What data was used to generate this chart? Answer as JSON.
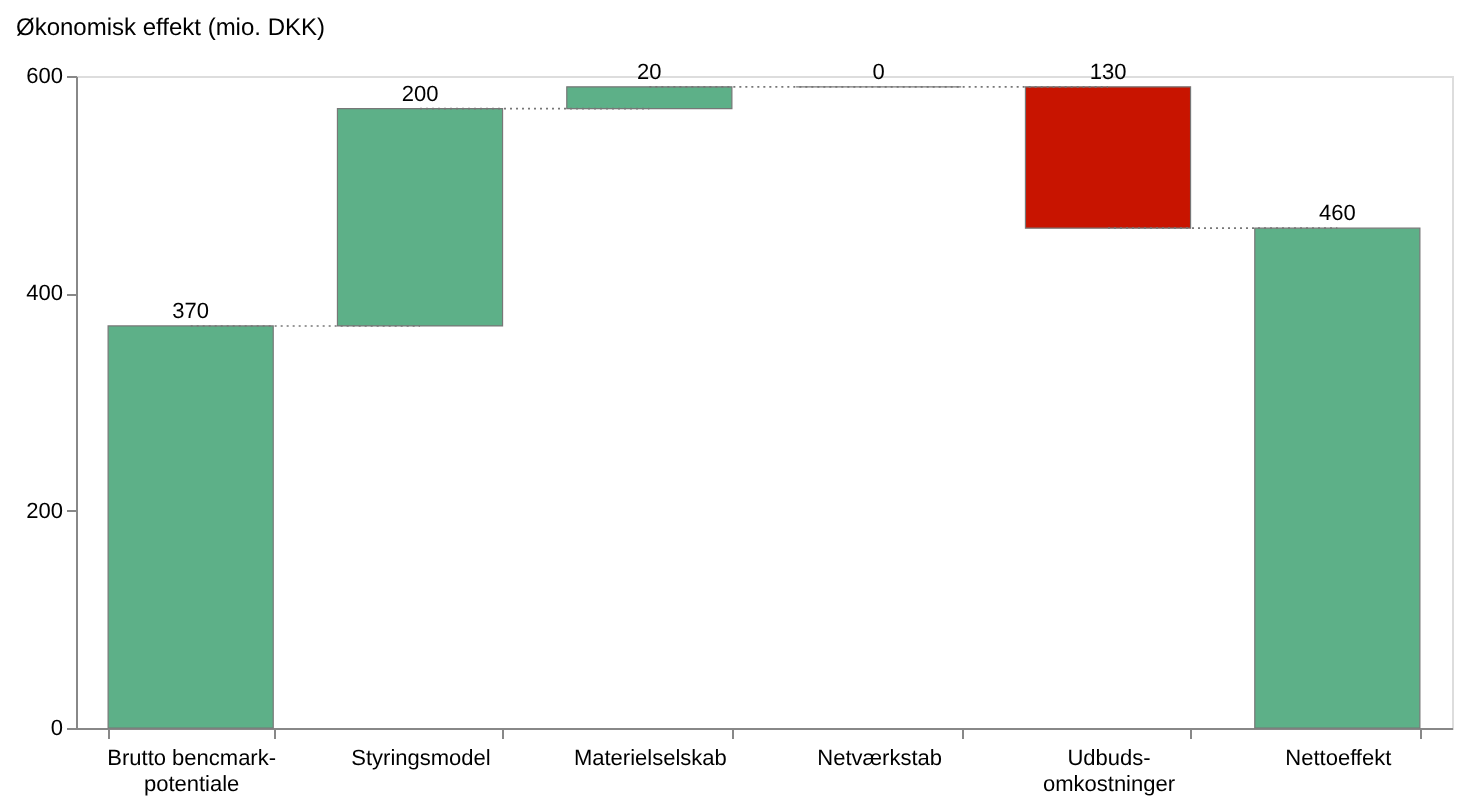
{
  "chart_data": {
    "type": "bar",
    "ylabel": "Økonomisk effekt (mio. DKK)",
    "categories": [
      "Brutto bencmark-potentiale",
      "Styringsmodel",
      "Materielselskab",
      "Netværkstab",
      "Udbuds-omkostninger",
      "Nettoeffekt"
    ],
    "base": [
      0,
      370,
      570,
      590,
      590,
      0
    ],
    "values": [
      370,
      200,
      20,
      0,
      -130,
      460
    ],
    "value_labels": [
      "370",
      "200",
      "20",
      "0",
      "130",
      "460"
    ],
    "colors": [
      "#5db088",
      "#5db088",
      "#5db088",
      "#777777",
      "#c81400",
      "#5db088"
    ],
    "ylim": [
      0,
      600
    ],
    "yticks": [
      0,
      200,
      400,
      600
    ],
    "grid": false
  }
}
